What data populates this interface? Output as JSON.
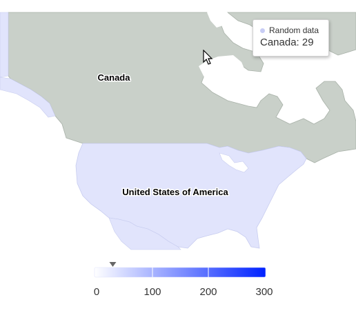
{
  "map": {
    "labels": {
      "canada": "Canada",
      "usa": "United States of America"
    },
    "colors": {
      "canada_fill": "#c9d0c9",
      "usa_fill": "#e1e4fc",
      "land_border": "#a8b1a8",
      "background": "#ffffff",
      "scale_min": "#ffffff",
      "scale_max": "#0022ff"
    }
  },
  "chart_data": {
    "type": "choropleth",
    "series_name": "Random data",
    "regions": [
      {
        "name": "Canada",
        "value": 29,
        "highlighted": true
      }
    ],
    "color_axis": {
      "min": 0,
      "max": 300,
      "ticks": [
        "0",
        "100",
        "200",
        "300"
      ],
      "marker_value": 29
    }
  },
  "tooltip": {
    "series": "Random data",
    "text": "Canada: 29",
    "dot_color": "#c8cdf5"
  }
}
